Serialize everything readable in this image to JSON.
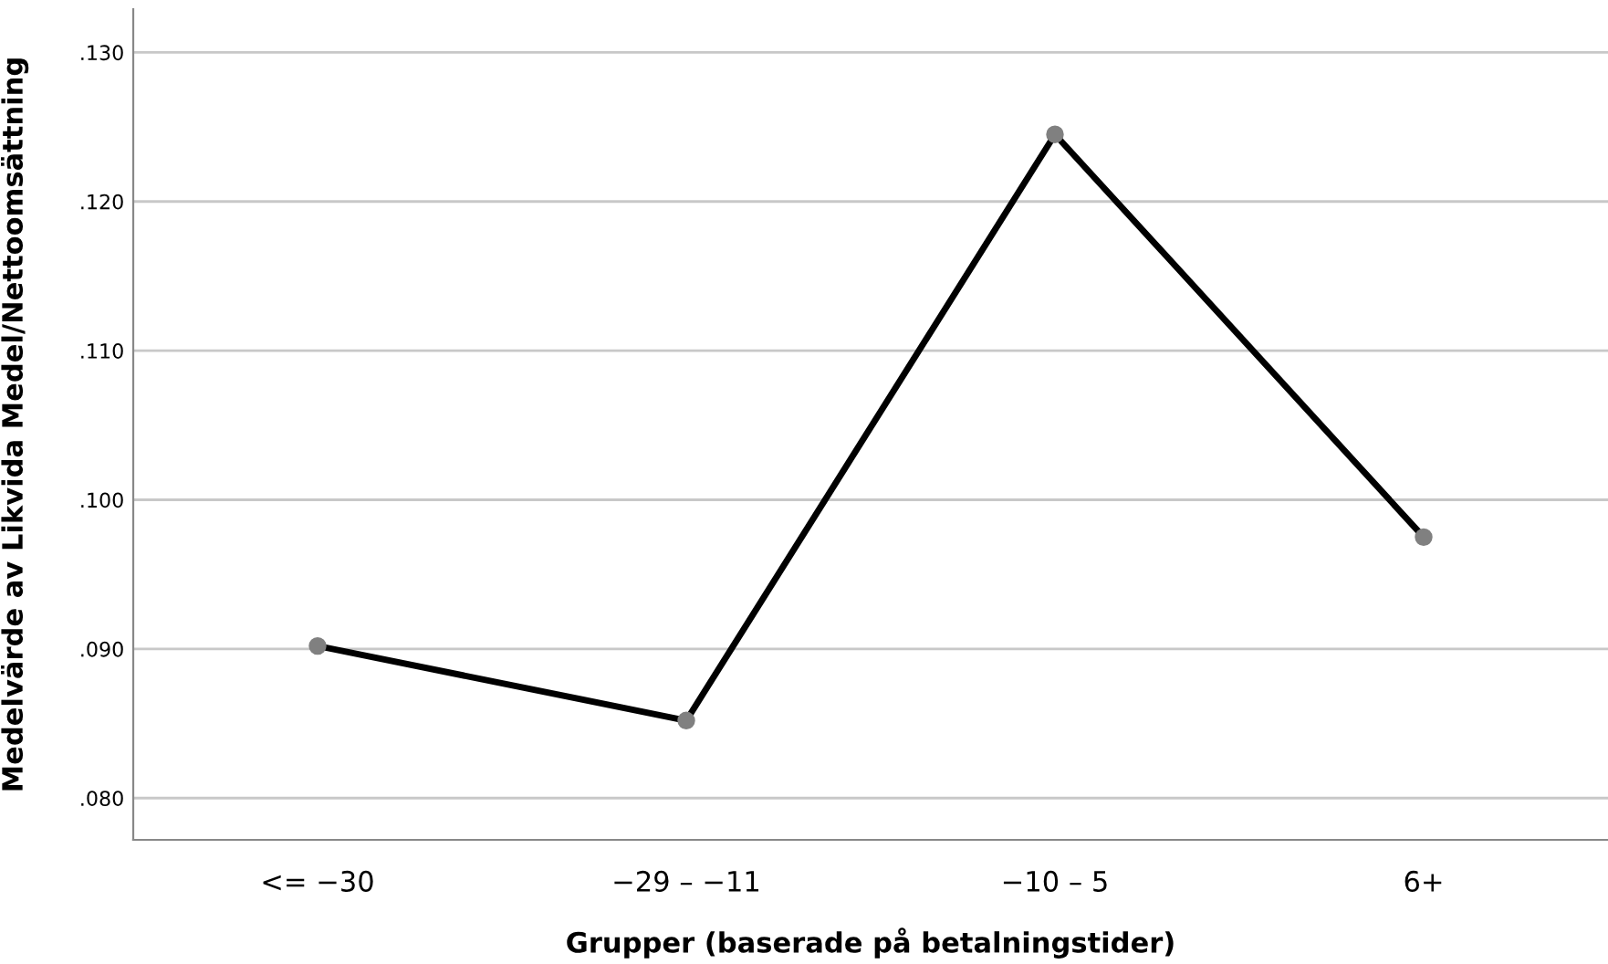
{
  "chart_data": {
    "type": "line",
    "xlabel": "Grupper (baserade på betalningstider)",
    "ylabel": "Medelvärde av Likvida Medel/Nettoomsättning",
    "categories": [
      "<= −30",
      "−29 – −11",
      "−10 – 5",
      "6+"
    ],
    "series": [
      {
        "color": "#000000",
        "values": [
          0.0902,
          0.0852,
          0.1245,
          0.0975
        ]
      }
    ],
    "marker": "circle",
    "line_style": "solid",
    "ylim": [
      0.0772,
      0.1329
    ],
    "yticks": [
      {
        "value": 0.08,
        "label": ".080"
      },
      {
        "value": 0.09,
        "label": ".090"
      },
      {
        "value": 0.1,
        "label": ".100"
      },
      {
        "value": 0.11,
        "label": ".110"
      },
      {
        "value": 0.12,
        "label": ".120"
      },
      {
        "value": 0.13,
        "label": ".130"
      }
    ],
    "grid": "y",
    "legend": false
  }
}
